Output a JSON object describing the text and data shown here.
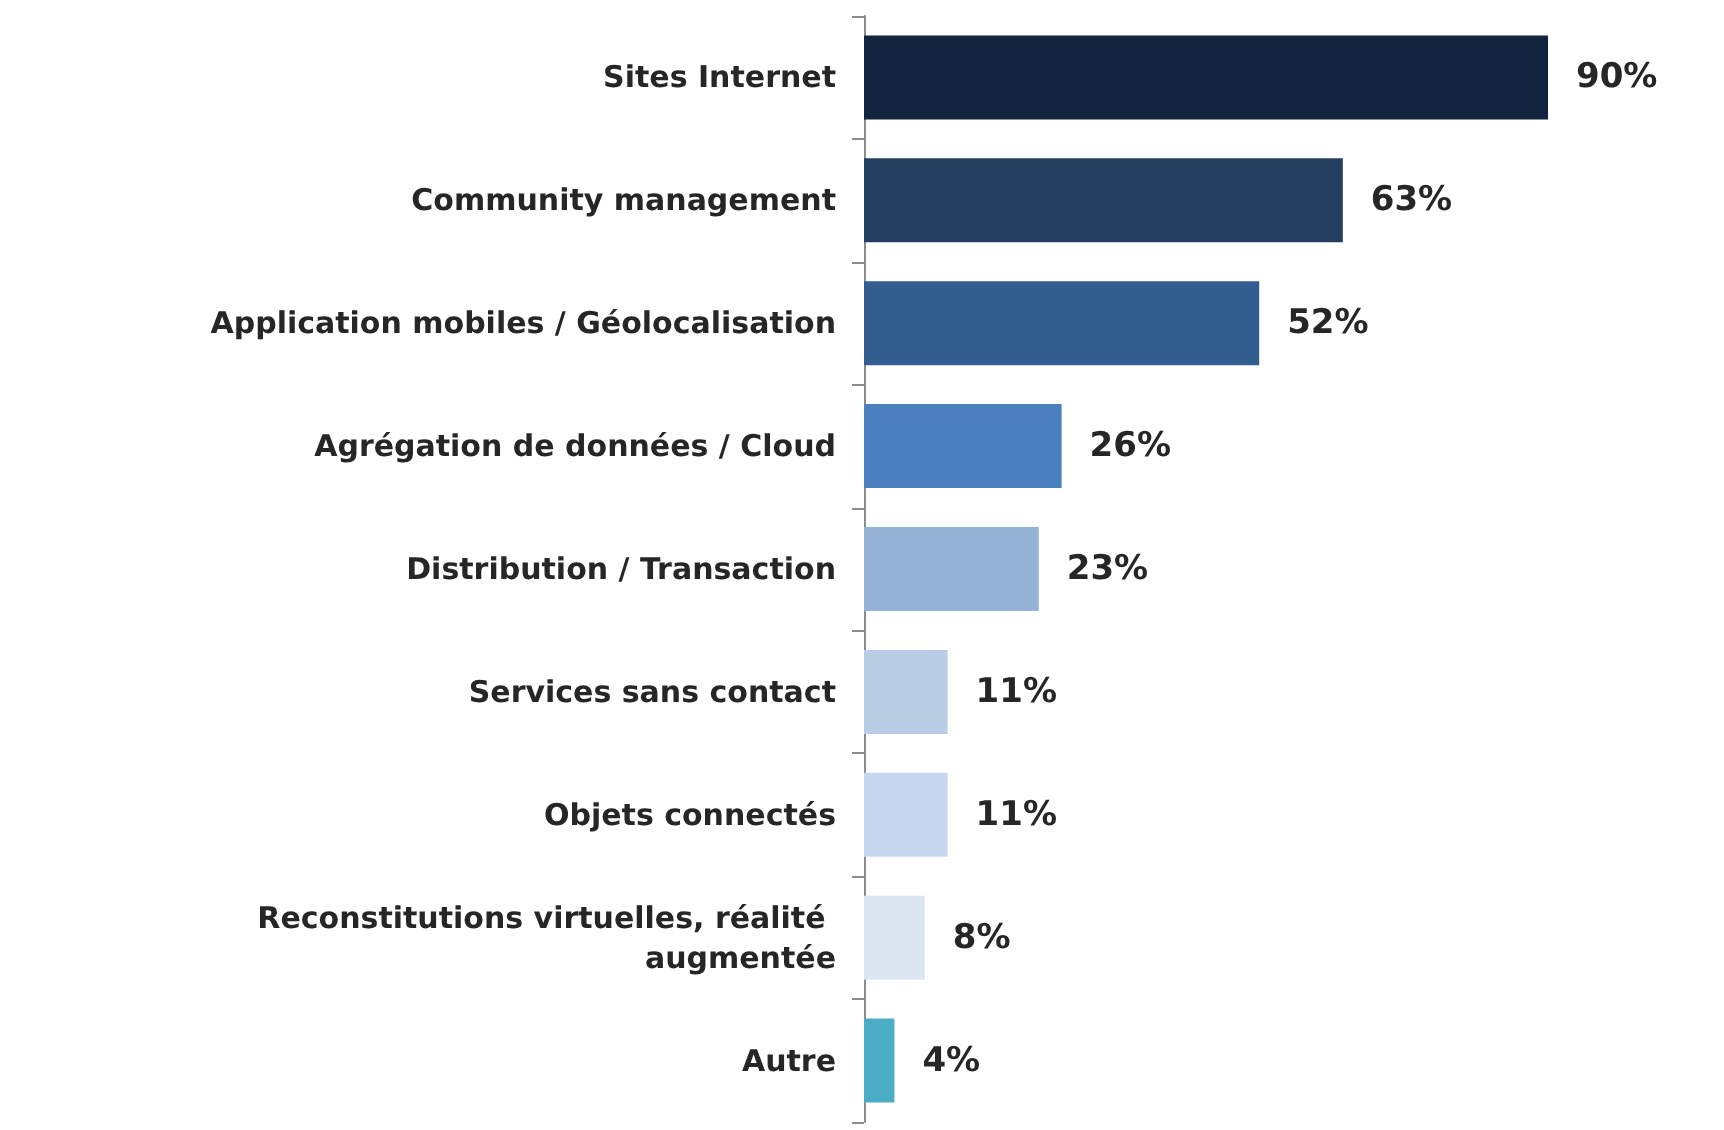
{
  "chart_data": {
    "type": "bar",
    "orientation": "horizontal",
    "categories": [
      "Sites Internet",
      "Community management",
      "Application mobiles / Géolocalisation",
      "Agrégation de données / Cloud",
      "Distribution / Transaction",
      "Services sans contact",
      "Objets connectés",
      "Reconstitutions virtuelles, réalité augmentée",
      "Autre"
    ],
    "values": [
      90,
      63,
      52,
      26,
      23,
      11,
      11,
      8,
      4
    ],
    "colors": [
      "#13243f",
      "#243e60",
      "#335d8f",
      "#4a7fbd",
      "#95b3d7",
      "#b9cde5",
      "#c6d9f1",
      "#dce6f2",
      "#4bacc6"
    ],
    "value_labels": [
      "90%",
      "63%",
      "52%",
      "26%",
      "23%",
      "11%",
      "11%",
      "8%",
      "4%"
    ]
  }
}
